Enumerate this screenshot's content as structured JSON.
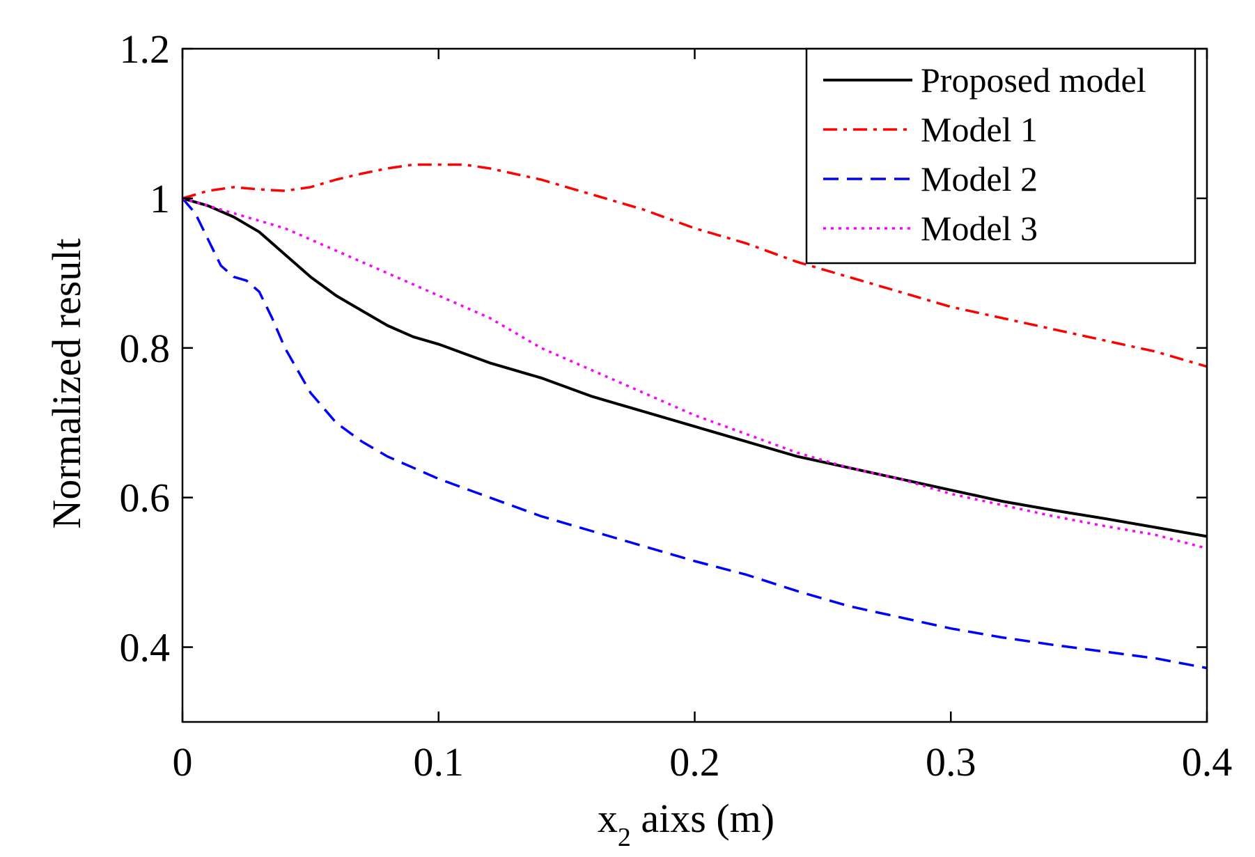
{
  "chart_data": {
    "type": "line",
    "title": "",
    "xlabel": {
      "main": "x",
      "subscript": "2",
      "rest": " aixs (m)"
    },
    "ylabel": "Normalized result",
    "xlim": [
      0,
      0.4
    ],
    "ylim": [
      0.3,
      1.2
    ],
    "xticks": [
      0,
      0.1,
      0.2,
      0.3,
      0.4
    ],
    "xtick_labels": [
      "0",
      "0.1",
      "0.2",
      "0.3",
      "0.4"
    ],
    "yticks": [
      0.4,
      0.6,
      0.8,
      1.0,
      1.2
    ],
    "ytick_labels": [
      "0.4",
      "0.6",
      "0.8",
      "1",
      "1.2"
    ],
    "grid": false,
    "legend_position": "top-right",
    "series": [
      {
        "name": "Proposed model",
        "color": "#000000",
        "style": "solid",
        "x": [
          0,
          0.01,
          0.02,
          0.03,
          0.04,
          0.05,
          0.06,
          0.07,
          0.08,
          0.09,
          0.1,
          0.12,
          0.14,
          0.16,
          0.18,
          0.2,
          0.22,
          0.24,
          0.26,
          0.28,
          0.3,
          0.32,
          0.34,
          0.36,
          0.38,
          0.4
        ],
        "y": [
          1.0,
          0.99,
          0.975,
          0.955,
          0.925,
          0.895,
          0.87,
          0.85,
          0.83,
          0.815,
          0.805,
          0.78,
          0.76,
          0.735,
          0.715,
          0.695,
          0.675,
          0.655,
          0.64,
          0.625,
          0.61,
          0.595,
          0.583,
          0.572,
          0.56,
          0.548
        ]
      },
      {
        "name": "Model 1",
        "color": "#ff0000",
        "style": "dashdot",
        "x": [
          0,
          0.01,
          0.02,
          0.03,
          0.04,
          0.05,
          0.06,
          0.07,
          0.08,
          0.09,
          0.1,
          0.11,
          0.12,
          0.14,
          0.16,
          0.18,
          0.2,
          0.22,
          0.24,
          0.26,
          0.28,
          0.3,
          0.32,
          0.34,
          0.36,
          0.38,
          0.4
        ],
        "y": [
          1.0,
          1.01,
          1.015,
          1.012,
          1.01,
          1.015,
          1.025,
          1.033,
          1.04,
          1.045,
          1.045,
          1.045,
          1.04,
          1.025,
          1.005,
          0.985,
          0.96,
          0.94,
          0.915,
          0.895,
          0.875,
          0.855,
          0.84,
          0.825,
          0.81,
          0.795,
          0.775
        ]
      },
      {
        "name": "Model 2",
        "color": "#0000ff",
        "style": "dashed",
        "x": [
          0,
          0.005,
          0.01,
          0.015,
          0.02,
          0.025,
          0.03,
          0.035,
          0.04,
          0.05,
          0.06,
          0.07,
          0.08,
          0.09,
          0.1,
          0.12,
          0.14,
          0.16,
          0.18,
          0.2,
          0.22,
          0.24,
          0.26,
          0.28,
          0.3,
          0.32,
          0.34,
          0.36,
          0.38,
          0.4
        ],
        "y": [
          1.0,
          0.98,
          0.945,
          0.91,
          0.895,
          0.89,
          0.875,
          0.84,
          0.8,
          0.74,
          0.7,
          0.675,
          0.655,
          0.64,
          0.625,
          0.6,
          0.575,
          0.555,
          0.535,
          0.515,
          0.497,
          0.475,
          0.455,
          0.44,
          0.425,
          0.413,
          0.403,
          0.394,
          0.385,
          0.372
        ]
      },
      {
        "name": "Model 3",
        "color": "#ff00ff",
        "style": "dotted",
        "x": [
          0,
          0.01,
          0.02,
          0.03,
          0.04,
          0.05,
          0.06,
          0.07,
          0.08,
          0.09,
          0.1,
          0.12,
          0.14,
          0.16,
          0.18,
          0.2,
          0.22,
          0.24,
          0.26,
          0.28,
          0.3,
          0.32,
          0.34,
          0.36,
          0.38,
          0.4
        ],
        "y": [
          1.0,
          0.99,
          0.98,
          0.97,
          0.96,
          0.945,
          0.93,
          0.915,
          0.9,
          0.885,
          0.87,
          0.84,
          0.8,
          0.77,
          0.74,
          0.71,
          0.685,
          0.66,
          0.64,
          0.625,
          0.605,
          0.59,
          0.575,
          0.562,
          0.55,
          0.532
        ]
      }
    ]
  }
}
